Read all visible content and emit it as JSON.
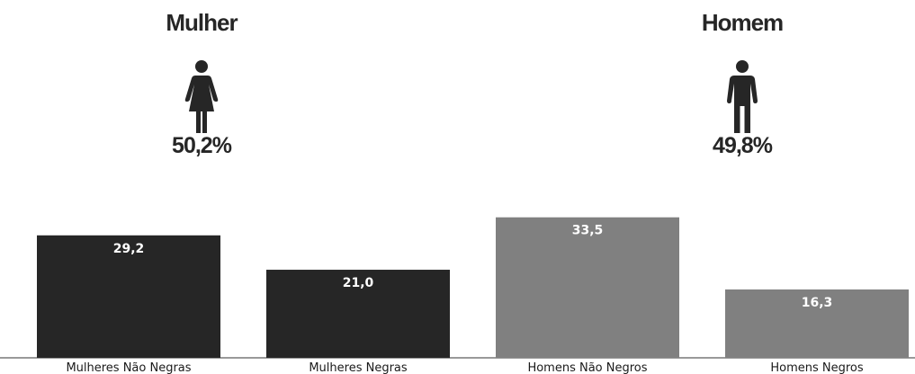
{
  "gender": {
    "female": {
      "title": "Mulher",
      "percent": "50,2%",
      "icon": "woman-icon"
    },
    "male": {
      "title": "Homem",
      "percent": "49,8%",
      "icon": "man-icon"
    }
  },
  "chart_data": {
    "type": "bar",
    "title": "",
    "xlabel": "",
    "ylabel": "",
    "categories": [
      "Mulheres Não Negras",
      "Mulheres Negras",
      "Homens Não Negros",
      "Homens Negros"
    ],
    "values": [
      29.2,
      21.0,
      33.5,
      16.3
    ],
    "value_labels": [
      "29,2",
      "21,0",
      "33,5",
      "16,3"
    ],
    "colors": [
      "#262626",
      "#262626",
      "#808080",
      "#808080"
    ],
    "ylim": [
      0,
      35
    ],
    "grid": false,
    "legend": "none"
  }
}
